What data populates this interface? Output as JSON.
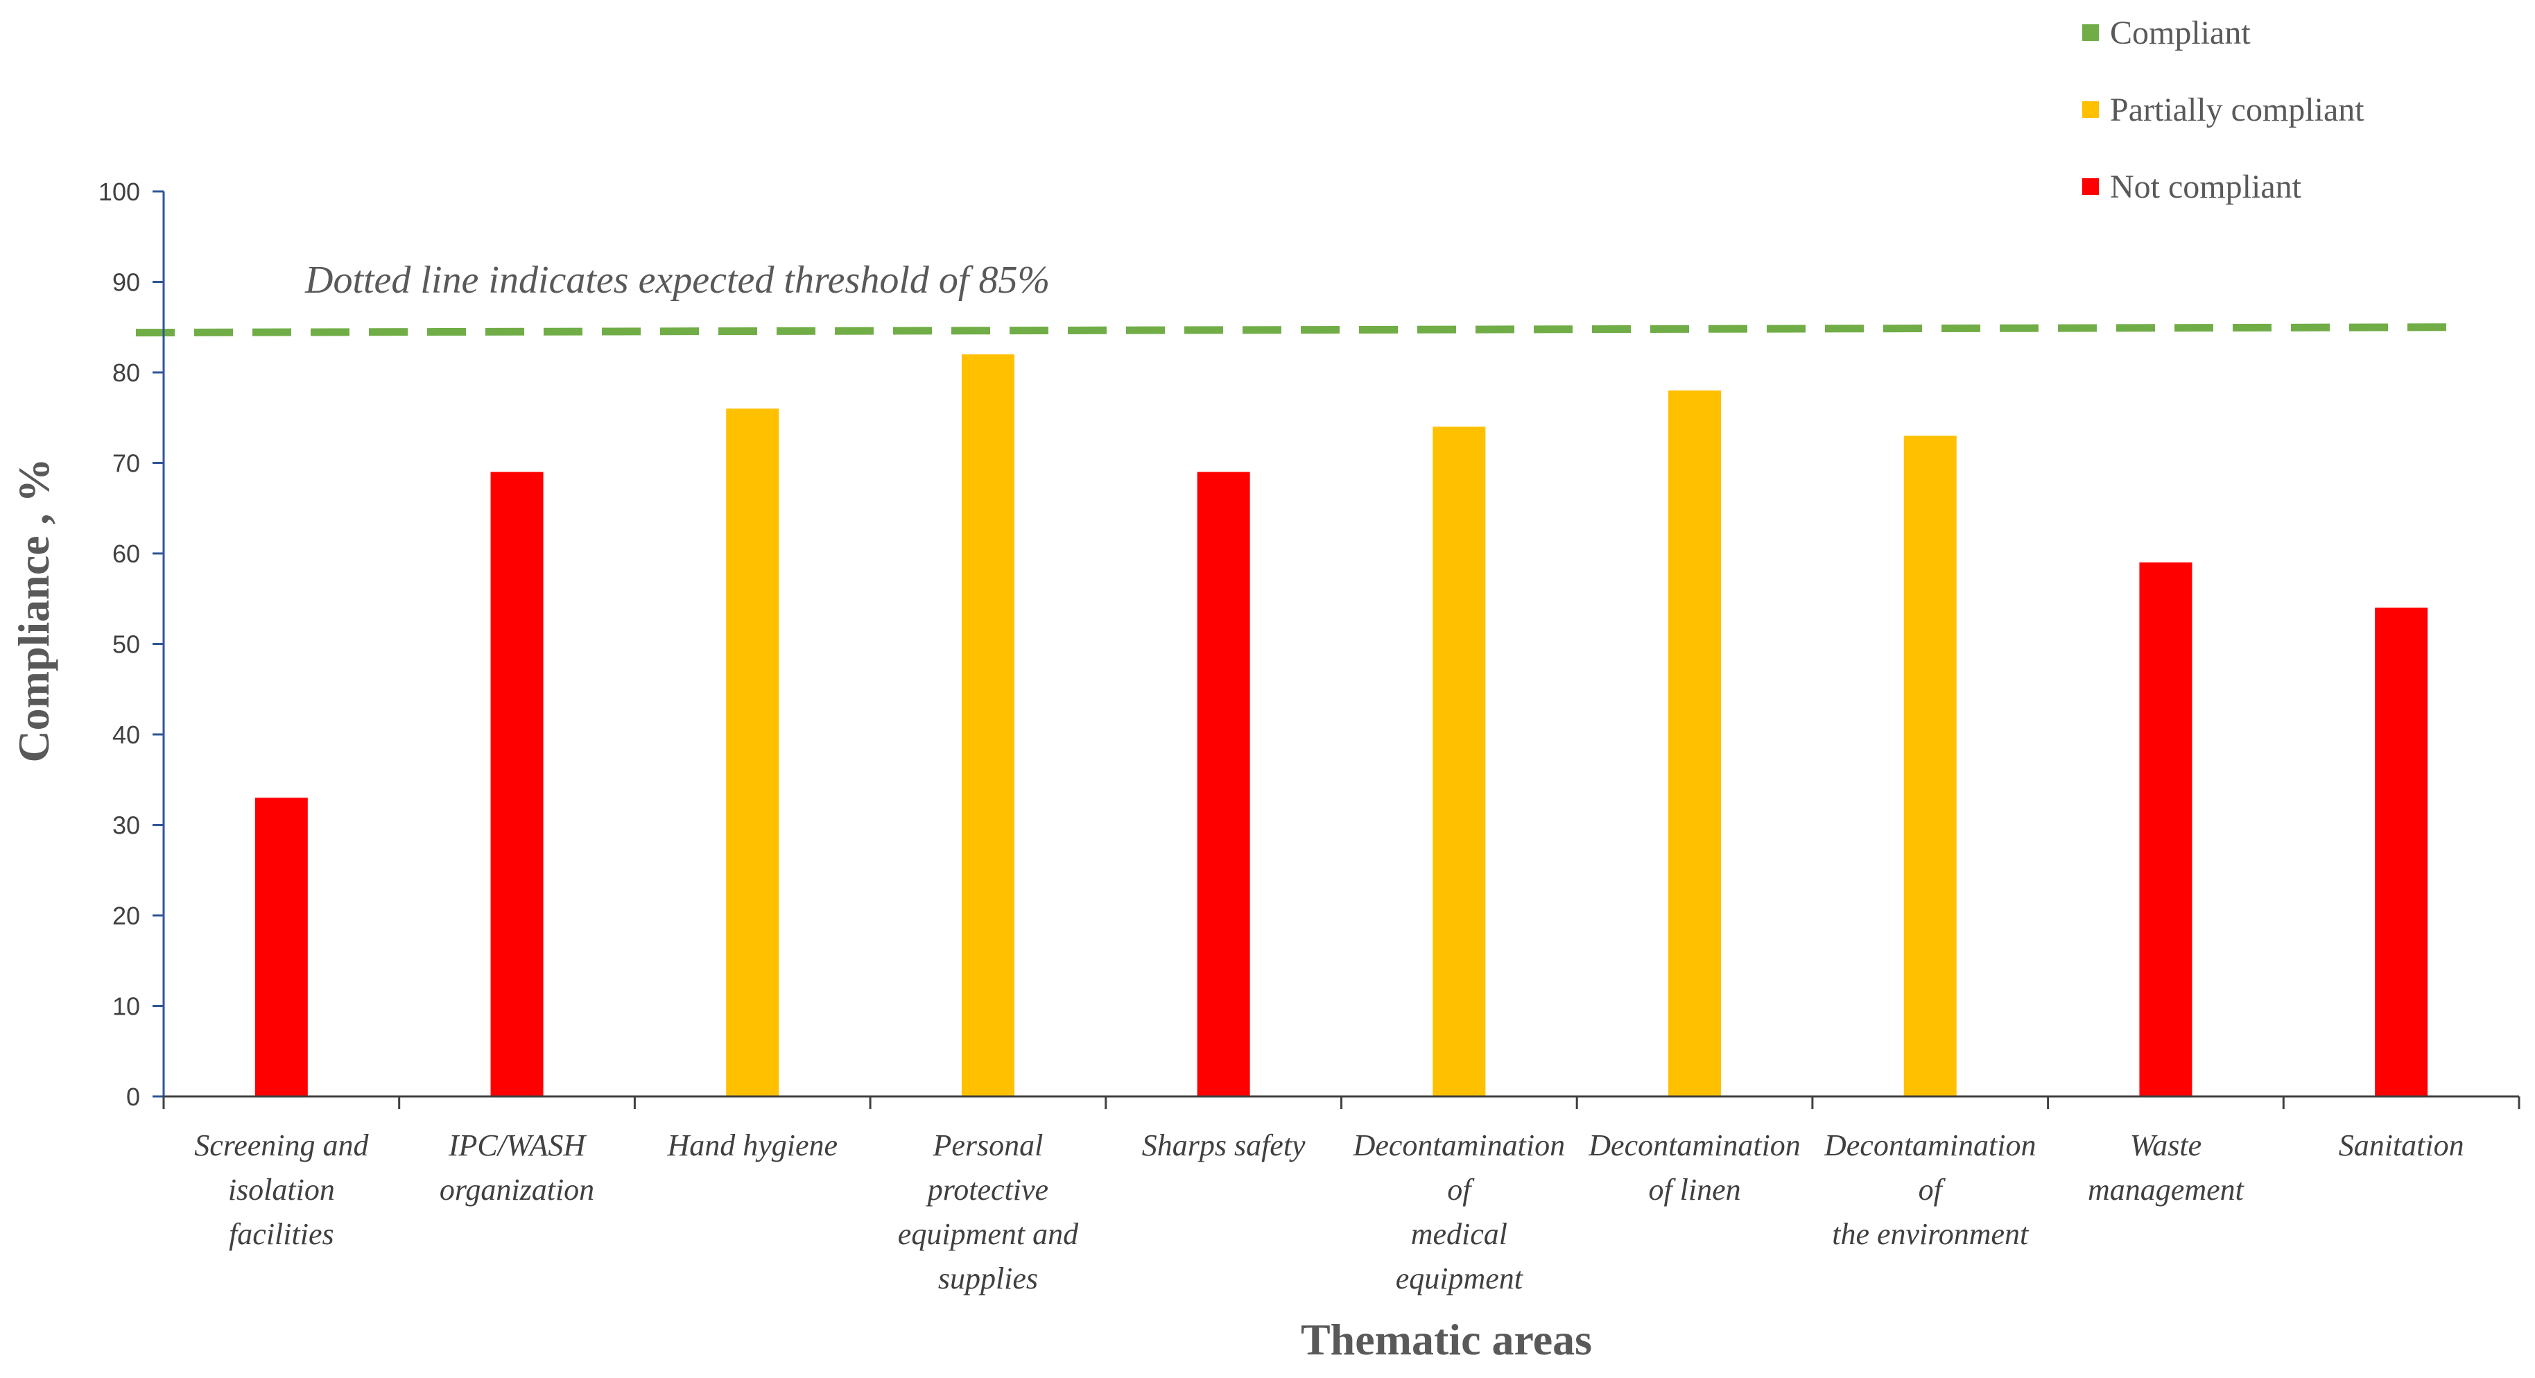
{
  "chart_data": {
    "type": "bar",
    "title": "",
    "xlabel": "Thematic areas",
    "ylabel": "Compliance , %",
    "ylim": [
      0,
      100
    ],
    "yticks": [
      "0",
      "10",
      "20",
      "30",
      "40",
      "50",
      "60",
      "70",
      "80",
      "90",
      "100"
    ],
    "categories": [
      [
        "Screening and",
        "isolation",
        "facilities"
      ],
      [
        "IPC/WASH",
        "organization"
      ],
      [
        "Hand hygiene"
      ],
      [
        "Personal",
        "protective",
        "equipment and",
        "supplies"
      ],
      [
        "Sharps safety"
      ],
      [
        "Decontamination",
        "of",
        "medical",
        "equipment"
      ],
      [
        "Decontamination",
        "of linen"
      ],
      [
        "Decontamination",
        "of",
        "the environment"
      ],
      [
        "Waste",
        "management"
      ],
      [
        "Sanitation"
      ]
    ],
    "values": [
      33,
      69,
      76,
      82,
      69,
      74,
      78,
      73,
      59,
      54
    ],
    "status": [
      "not",
      "not",
      "partial",
      "partial",
      "not",
      "partial",
      "partial",
      "partial",
      "not",
      "not"
    ],
    "threshold": 85,
    "threshold_label": "Dotted line indicates expected threshold of 85%",
    "legend": [
      {
        "key": "compliant",
        "label": "Compliant",
        "color": "#70ad47"
      },
      {
        "key": "partial",
        "label": "Partially compliant",
        "color": "#ffc000"
      },
      {
        "key": "not",
        "label": "Not compliant",
        "color": "#ff0000"
      }
    ],
    "colors": {
      "partial": "#ffc000",
      "not": "#ff0000",
      "threshold": "#70ad47",
      "axis": "#2f5597"
    }
  }
}
